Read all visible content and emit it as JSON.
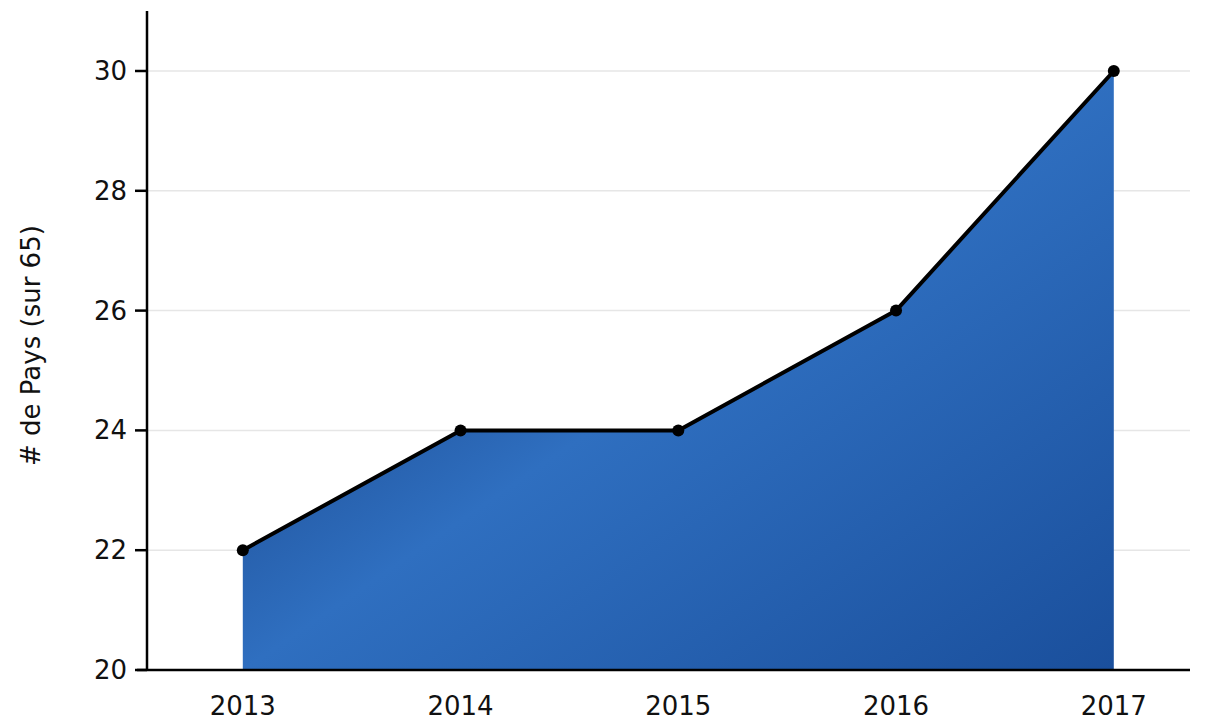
{
  "chart_data": {
    "type": "area",
    "y_label": "# de Pays (sur 65)",
    "categories": [
      "2013",
      "2014",
      "2015",
      "2016",
      "2017"
    ],
    "values": [
      22,
      24,
      24,
      26,
      30
    ],
    "color": "#2f6fc0",
    "marker": "circle",
    "line_style": "solid",
    "ylim": [
      20,
      31
    ],
    "yticks": [
      20,
      22,
      24,
      26,
      28,
      30
    ],
    "grid": true
  }
}
